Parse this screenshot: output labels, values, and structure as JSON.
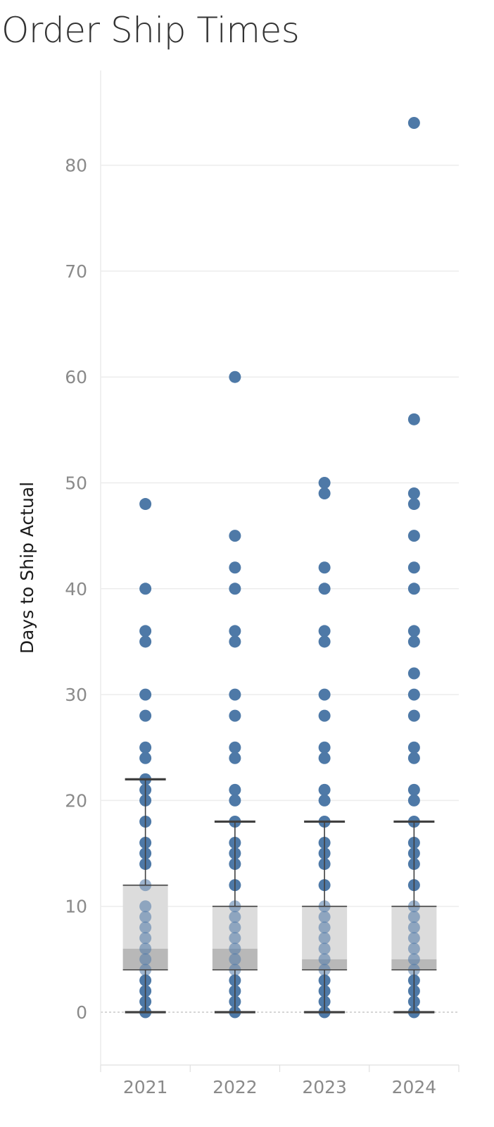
{
  "chart_data": {
    "type": "box-plot with dot strip",
    "title": "Order Ship Times",
    "ylabel": "Days to Ship Actual",
    "xlabel": "",
    "ylim": [
      -5,
      90
    ],
    "yticks": [
      0,
      10,
      20,
      30,
      40,
      50,
      60,
      70,
      80
    ],
    "grid": true,
    "legend": "none",
    "colors": {
      "dot": "#4e79a7",
      "dot_in_box": "#9db3cc",
      "box_upper": "#dcdcdc",
      "box_lower": "#b8b8b8",
      "whisker": "#404040",
      "gridline": "#ececec",
      "zero_line": "#bdbdbd"
    },
    "categories": [
      "2021",
      "2022",
      "2023",
      "2024"
    ],
    "series": [
      {
        "category": "2021",
        "points": [
          0,
          1,
          2,
          3,
          4,
          5,
          6,
          7,
          8,
          9,
          10,
          12,
          14,
          15,
          16,
          18,
          20,
          21,
          22,
          24,
          25,
          28,
          30,
          35,
          36,
          40,
          48
        ],
        "box": {
          "whisker_low": 0,
          "q1": 4,
          "median": 6,
          "q3": 12,
          "whisker_high": 22
        }
      },
      {
        "category": "2022",
        "points": [
          0,
          1,
          2,
          3,
          4,
          5,
          6,
          7,
          8,
          9,
          10,
          12,
          14,
          15,
          16,
          18,
          20,
          21,
          24,
          25,
          28,
          30,
          35,
          36,
          40,
          42,
          45,
          60
        ],
        "box": {
          "whisker_low": 0,
          "q1": 4,
          "median": 6,
          "q3": 10,
          "whisker_high": 18
        }
      },
      {
        "category": "2023",
        "points": [
          0,
          1,
          2,
          3,
          4,
          5,
          6,
          7,
          8,
          9,
          10,
          12,
          14,
          15,
          16,
          18,
          20,
          21,
          24,
          25,
          28,
          30,
          35,
          36,
          40,
          42,
          49,
          50
        ],
        "box": {
          "whisker_low": 0,
          "q1": 4,
          "median": 5,
          "q3": 10,
          "whisker_high": 18
        }
      },
      {
        "category": "2024",
        "points": [
          0,
          1,
          2,
          3,
          4,
          5,
          6,
          7,
          8,
          9,
          10,
          12,
          14,
          15,
          16,
          18,
          20,
          21,
          24,
          25,
          28,
          30,
          32,
          35,
          36,
          40,
          42,
          45,
          48,
          49,
          56,
          84
        ],
        "box": {
          "whisker_low": 0,
          "q1": 4,
          "median": 5,
          "q3": 10,
          "whisker_high": 18
        }
      }
    ]
  }
}
